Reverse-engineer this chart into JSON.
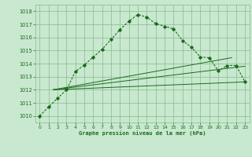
{
  "bg_color": "#c8e8d0",
  "grid_color": "#88bb88",
  "line_color": "#1a6b1a",
  "title": "Graphe pression niveau de la mer (hPa)",
  "xlim": [
    -0.5,
    23.5
  ],
  "ylim": [
    1009.5,
    1018.5
  ],
  "yticks": [
    1010,
    1011,
    1012,
    1013,
    1014,
    1015,
    1016,
    1017,
    1018
  ],
  "xticks": [
    0,
    1,
    2,
    3,
    4,
    5,
    6,
    7,
    8,
    9,
    10,
    11,
    12,
    13,
    14,
    15,
    16,
    17,
    18,
    19,
    20,
    21,
    22,
    23
  ],
  "main_x": [
    0,
    1,
    2,
    3,
    4,
    5,
    6,
    7,
    8,
    9,
    10,
    11,
    12,
    13,
    14,
    15,
    16,
    17,
    18,
    19,
    20,
    21,
    22,
    23
  ],
  "main_y": [
    1010.0,
    1010.7,
    1011.35,
    1012.0,
    1013.4,
    1013.9,
    1014.5,
    1015.1,
    1015.85,
    1016.6,
    1017.25,
    1017.75,
    1017.55,
    1017.05,
    1016.85,
    1016.65,
    1015.75,
    1015.25,
    1014.5,
    1014.45,
    1013.45,
    1013.85,
    1013.85,
    1012.6
  ],
  "line1_x": [
    1.5,
    21.5
  ],
  "line1_y": [
    1012.0,
    1014.45
  ],
  "line2_x": [
    1.5,
    23.0
  ],
  "line2_y": [
    1012.0,
    1013.8
  ],
  "line3_x": [
    1.5,
    23.0
  ],
  "line3_y": [
    1012.0,
    1012.6
  ]
}
